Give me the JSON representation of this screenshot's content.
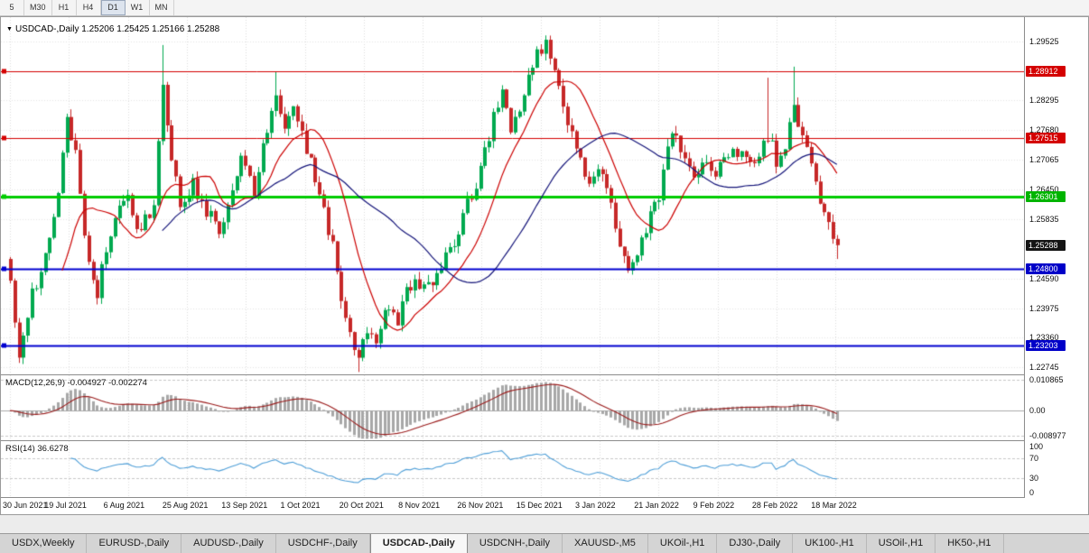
{
  "toolbar": {
    "timeframes": [
      {
        "label": "5",
        "active": false
      },
      {
        "label": "M30",
        "active": false
      },
      {
        "label": "H1",
        "active": false
      },
      {
        "label": "H4",
        "active": false
      },
      {
        "label": "D1",
        "active": true
      },
      {
        "label": "W1",
        "active": false
      },
      {
        "label": "MN",
        "active": false
      }
    ]
  },
  "chart": {
    "marker": "▼",
    "title": "USDCAD-,Daily 1.25206 1.25425 1.25166 1.25288"
  },
  "macd": {
    "label": "MACD(12,26,9) -0.004927 -0.002274"
  },
  "rsi": {
    "label": "RSI(14) 36.6278"
  },
  "tabbar": {
    "tabs": [
      {
        "label": "USDX,Weekly",
        "active": false
      },
      {
        "label": "EURUSD-,Daily",
        "active": false
      },
      {
        "label": "AUDUSD-,Daily",
        "active": false
      },
      {
        "label": "USDCHF-,Daily",
        "active": false
      },
      {
        "label": "USDCAD-,Daily",
        "active": true
      },
      {
        "label": "USDCNH-,Daily",
        "active": false
      },
      {
        "label": "XAUUSD-,M5",
        "active": false
      },
      {
        "label": "UKOil-,H1",
        "active": false
      },
      {
        "label": "DJ30-,Daily",
        "active": false
      },
      {
        "label": "UK100-,H1",
        "active": false
      },
      {
        "label": "USOil-,H1",
        "active": false
      },
      {
        "label": "HK50-,H1",
        "active": false
      }
    ]
  },
  "chart_data": {
    "type": "candlestick",
    "symbol": "USDCAD-",
    "period": "Daily",
    "current": {
      "open": 1.25206,
      "high": 1.25425,
      "low": 1.25166,
      "close": 1.25288
    },
    "ylim": [
      1.226,
      1.3003
    ],
    "y_axis_ticks": [
      "1.29525",
      "1.28295",
      "1.27680",
      "1.27065",
      "1.26450",
      "1.25835",
      "1.24590",
      "1.23975",
      "1.23360",
      "1.22745"
    ],
    "badges": [
      {
        "text": "1.28912",
        "color": "#d40000"
      },
      {
        "text": "1.27515",
        "color": "#d40000"
      },
      {
        "text": "1.26301",
        "color": "#00b400"
      },
      {
        "text": "1.25288",
        "color": "#141414"
      },
      {
        "text": "1.24800",
        "color": "#0000c8"
      },
      {
        "text": "1.23203",
        "color": "#0000c8"
      }
    ],
    "horizontal_lines": [
      {
        "price": 1.28912,
        "color": "#d40000",
        "width": 1
      },
      {
        "price": 1.27515,
        "color": "#d40000",
        "width": 1
      },
      {
        "price": 1.26301,
        "color": "#00cc00",
        "width": 3
      },
      {
        "price": 1.248,
        "color": "#0000d0",
        "width": 2
      },
      {
        "price": 1.23203,
        "color": "#0000d0",
        "width": 2
      }
    ],
    "x_axis_ticks": [
      "30 Jun 2021",
      "19 Jul 2021",
      "6 Aug 2021",
      "25 Aug 2021",
      "13 Sep 2021",
      "1 Oct 2021",
      "20 Oct 2021",
      "8 Nov 2021",
      "26 Nov 2021",
      "15 Dec 2021",
      "3 Jan 2022",
      "21 Jan 2022",
      "9 Feb 2022",
      "28 Feb 2022",
      "18 Mar 2022"
    ],
    "price_path": [
      [
        0,
        1.2455
      ],
      [
        2,
        1.23
      ],
      [
        4,
        1.239
      ],
      [
        8,
        1.252
      ],
      [
        11,
        1.263
      ],
      [
        13,
        1.279
      ],
      [
        15,
        1.272
      ],
      [
        18,
        1.248
      ],
      [
        20,
        1.2425
      ],
      [
        22,
        1.253
      ],
      [
        24,
        1.2585
      ],
      [
        27,
        1.2625
      ],
      [
        30,
        1.2555
      ],
      [
        33,
        1.262
      ],
      [
        35,
        1.285
      ],
      [
        37,
        1.27
      ],
      [
        39,
        1.262
      ],
      [
        42,
        1.2655
      ],
      [
        45,
        1.26
      ],
      [
        48,
        1.255
      ],
      [
        51,
        1.265
      ],
      [
        53,
        1.272
      ],
      [
        56,
        1.264
      ],
      [
        58,
        1.275
      ],
      [
        61,
        1.283
      ],
      [
        63,
        1.276
      ],
      [
        65,
        1.281
      ],
      [
        67,
        1.275
      ],
      [
        69,
        1.27
      ],
      [
        71,
        1.264
      ],
      [
        74,
        1.252
      ],
      [
        76,
        1.242
      ],
      [
        78,
        1.235
      ],
      [
        80,
        1.23
      ],
      [
        82,
        1.236
      ],
      [
        84,
        1.233
      ],
      [
        85,
        1.2365
      ],
      [
        87,
        1.239
      ],
      [
        89,
        1.237
      ],
      [
        91,
        1.243
      ],
      [
        93,
        1.2455
      ],
      [
        95,
        1.244
      ],
      [
        98,
        1.2455
      ],
      [
        101,
        1.252
      ],
      [
        103,
        1.256
      ],
      [
        105,
        1.261
      ],
      [
        107,
        1.265
      ],
      [
        109,
        1.272
      ],
      [
        111,
        1.28
      ],
      [
        113,
        1.284
      ],
      [
        115,
        1.278
      ],
      [
        117,
        1.282
      ],
      [
        119,
        1.288
      ],
      [
        121,
        1.292
      ],
      [
        123,
        1.295
      ],
      [
        125,
        1.288
      ],
      [
        127,
        1.282
      ],
      [
        129,
        1.276
      ],
      [
        131,
        1.27
      ],
      [
        133,
        1.266
      ],
      [
        136,
        1.268
      ],
      [
        138,
        1.262
      ],
      [
        140,
        1.253
      ],
      [
        142,
        1.247
      ],
      [
        144,
        1.25
      ],
      [
        146,
        1.256
      ],
      [
        149,
        1.263
      ],
      [
        151,
        1.272
      ],
      [
        153,
        1.277
      ],
      [
        155,
        1.27
      ],
      [
        157,
        1.267
      ],
      [
        159,
        1.27
      ],
      [
        162,
        1.267
      ],
      [
        164,
        1.27
      ],
      [
        166,
        1.274
      ],
      [
        168,
        1.271
      ],
      [
        170,
        1.269
      ],
      [
        172,
        1.272
      ],
      [
        174,
        1.276
      ],
      [
        176,
        1.27
      ],
      [
        178,
        1.274
      ],
      [
        180,
        1.282
      ],
      [
        182,
        1.276
      ],
      [
        184,
        1.27
      ],
      [
        186,
        1.262
      ],
      [
        188,
        1.258
      ],
      [
        190,
        1.25288
      ]
    ],
    "extremes": {
      "35": {
        "h": 1.2945
      },
      "61": {
        "h": 1.289
      },
      "80": {
        "l": 1.2265
      },
      "123": {
        "h": 1.2965
      },
      "174": {
        "h": 1.2877
      },
      "180": {
        "h": 1.29
      },
      "190": {
        "l": 1.25
      }
    },
    "candle_colors": {
      "up": "#00a94f",
      "down": "#c62828"
    },
    "moving_averages": [
      {
        "period": 13,
        "color": "#cc0000"
      },
      {
        "period": 36,
        "color": "#15157a"
      }
    ],
    "macd": {
      "params": [
        12,
        26,
        9
      ],
      "main_value": -0.004927,
      "signal_value": -0.002274,
      "scale": {
        "max_label": "0.010865",
        "zero_label": "0.00",
        "min_label": "-0.008977",
        "max": 0.010865,
        "min": -0.008977
      },
      "hist_color": "#a8a8a8",
      "signal_color": "#9b1c1c"
    },
    "rsi": {
      "period": 14,
      "value": 36.6278,
      "levels": [
        100,
        70,
        30,
        0
      ],
      "dashed_levels": [
        70,
        30
      ],
      "line_color": "#4f9fd8"
    }
  }
}
